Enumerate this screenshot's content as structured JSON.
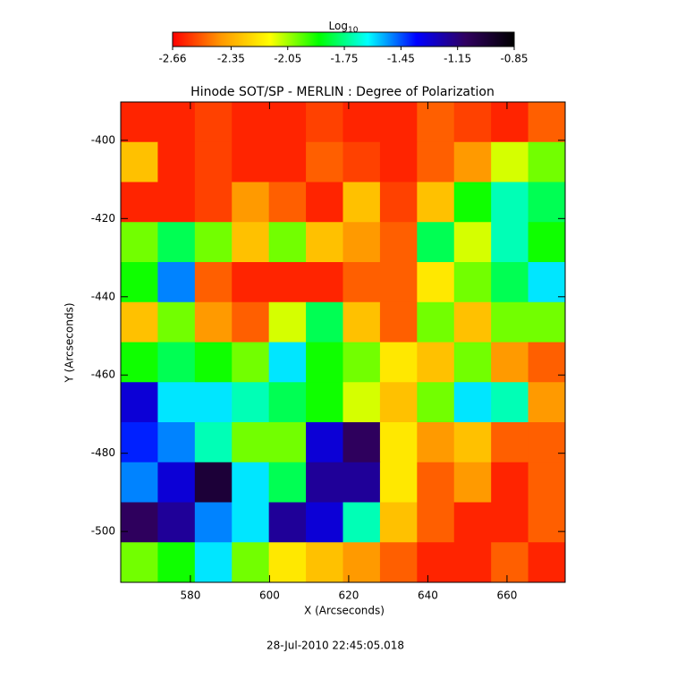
{
  "chart_data": {
    "type": "heatmap",
    "title": "Hinode SOT/SP - MERLIN : Degree of Polarization",
    "x_label": "X (Arcseconds)",
    "y_label": "Y (Arcseconds)",
    "footer": "28-Jul-2010 22:45:05.018",
    "colorbar_label": "Log",
    "colorbar_label_sub": "10",
    "clim": [
      -2.66,
      -0.85
    ],
    "cbticks": [
      -2.66,
      -2.35,
      -2.05,
      -1.75,
      -1.45,
      -1.15,
      -0.85
    ],
    "colormap": [
      "#ff0000",
      "#ff9900",
      "#ffff00",
      "#00ff00",
      "#00ffff",
      "#0000ff",
      "#300060",
      "#000000"
    ],
    "xlim": [
      562.4,
      674.7
    ],
    "ylim": [
      -513,
      -390.2
    ],
    "xticks": [
      580,
      600,
      620,
      640,
      660
    ],
    "yticks": [
      -500,
      -480,
      -460,
      -440,
      -420,
      -400
    ],
    "z": [
      [
        -2.6,
        -2.6,
        -2.55,
        -2.6,
        -2.6,
        -2.55,
        -2.6,
        -2.6,
        -2.5,
        -2.55,
        -2.6,
        -2.5
      ],
      [
        -2.3,
        -2.6,
        -2.55,
        -2.6,
        -2.6,
        -2.5,
        -2.55,
        -2.6,
        -2.5,
        -2.4,
        -2.1,
        -2.0
      ],
      [
        -2.6,
        -2.6,
        -2.55,
        -2.4,
        -2.5,
        -2.6,
        -2.3,
        -2.55,
        -2.3,
        -1.9,
        -1.7,
        -1.8
      ],
      [
        -2.0,
        -1.8,
        -2.0,
        -2.3,
        -2.0,
        -2.3,
        -2.4,
        -2.5,
        -1.8,
        -2.1,
        -1.7,
        -1.9
      ],
      [
        -1.9,
        -1.5,
        -2.5,
        -2.6,
        -2.6,
        -2.6,
        -2.5,
        -2.5,
        -2.2,
        -2.0,
        -1.8,
        -1.6
      ],
      [
        -2.3,
        -2.0,
        -2.4,
        -2.5,
        -2.1,
        -1.8,
        -2.3,
        -2.5,
        -2.0,
        -2.3,
        -2.0,
        -2.0
      ],
      [
        -1.9,
        -1.8,
        -1.9,
        -2.0,
        -1.6,
        -1.9,
        -2.0,
        -2.2,
        -2.3,
        -2.0,
        -2.4,
        -2.5
      ],
      [
        -1.3,
        -1.6,
        -1.6,
        -1.7,
        -1.8,
        -1.9,
        -2.1,
        -2.3,
        -2.0,
        -1.6,
        -1.7,
        -2.4
      ],
      [
        -1.4,
        -1.5,
        -1.7,
        -2.0,
        -2.0,
        -1.3,
        -1.1,
        -2.2,
        -2.4,
        -2.3,
        -2.5,
        -2.5
      ],
      [
        -1.5,
        -1.3,
        -1.0,
        -1.6,
        -1.8,
        -1.2,
        -1.2,
        -2.2,
        -2.5,
        -2.4,
        -2.6,
        -2.5
      ],
      [
        -1.1,
        -1.2,
        -1.5,
        -1.6,
        -1.2,
        -1.3,
        -1.7,
        -2.3,
        -2.5,
        -2.6,
        -2.6,
        -2.5
      ],
      [
        -2.0,
        -1.9,
        -1.6,
        -2.0,
        -2.2,
        -2.3,
        -2.4,
        -2.5,
        -2.6,
        -2.6,
        -2.5,
        -2.6
      ]
    ]
  }
}
